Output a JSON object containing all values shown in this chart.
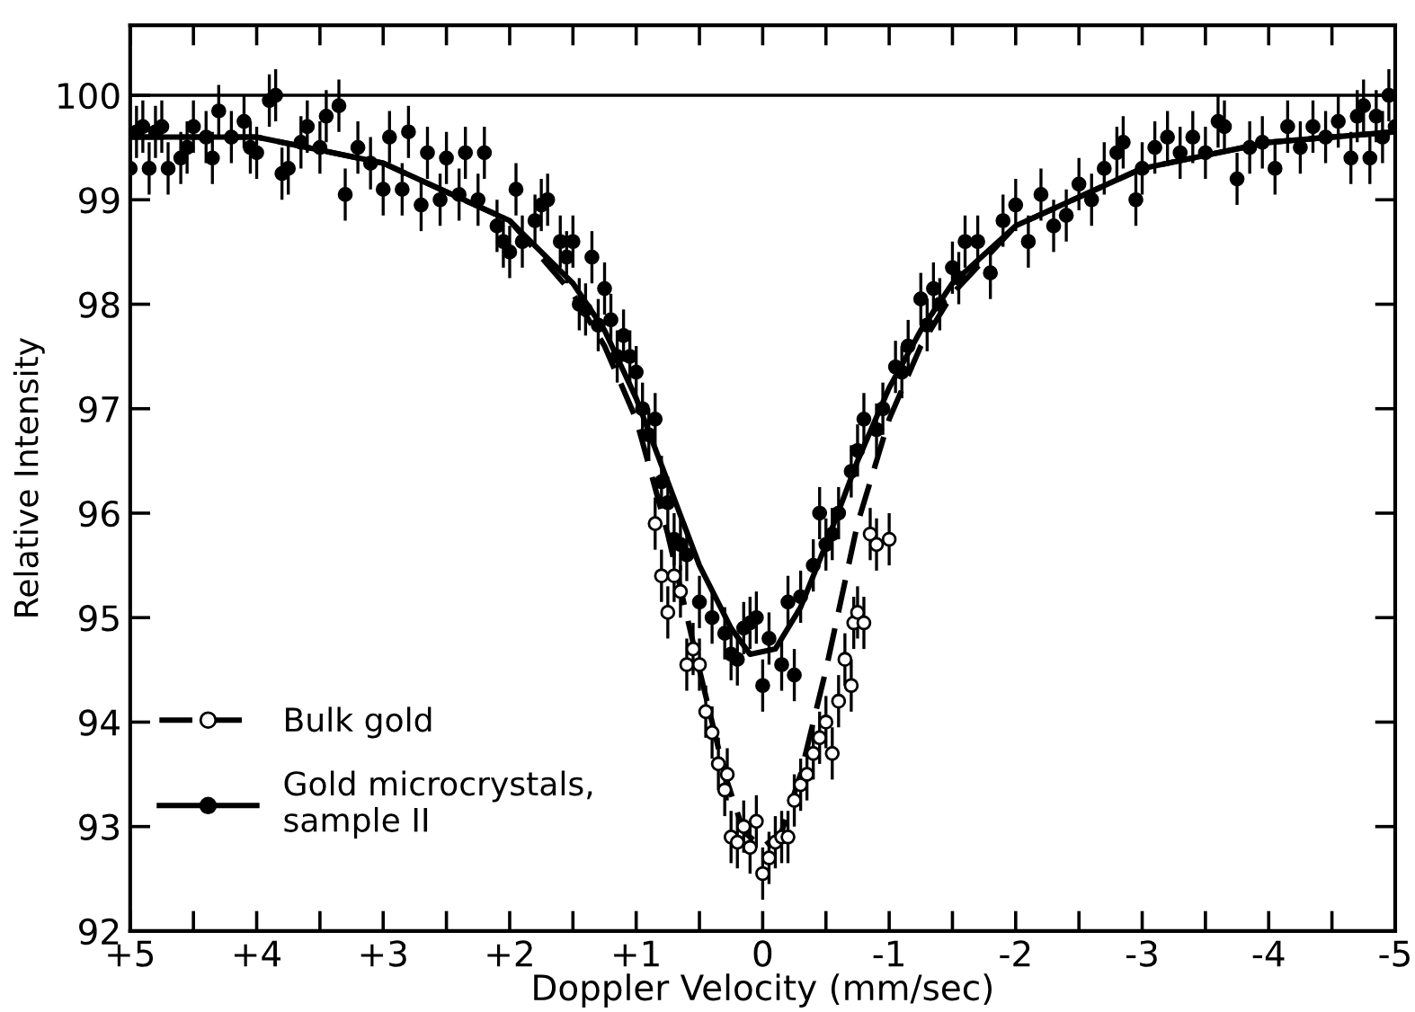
{
  "chart_data": {
    "type": "scatter",
    "xlabel": "Doppler Velocity (mm/sec)",
    "ylabel": "Relative Intensity",
    "xlim": [
      5,
      -5
    ],
    "ylim": [
      92,
      100.67
    ],
    "xticks": [
      {
        "value": 5,
        "label": "+5"
      },
      {
        "value": 4.5,
        "label": null
      },
      {
        "value": 4,
        "label": "+4"
      },
      {
        "value": 3.5,
        "label": null
      },
      {
        "value": 3,
        "label": "+3"
      },
      {
        "value": 2.5,
        "label": null
      },
      {
        "value": 2,
        "label": "+2"
      },
      {
        "value": 1.5,
        "label": null
      },
      {
        "value": 1,
        "label": "+1"
      },
      {
        "value": 0.5,
        "label": null
      },
      0,
      {
        "value": -0.5,
        "label": null
      },
      {
        "value": -1,
        "label": "-1"
      },
      {
        "value": -1.5,
        "label": null
      },
      {
        "value": -2,
        "label": "-2"
      },
      {
        "value": -2.5,
        "label": null
      },
      {
        "value": -3,
        "label": "-3"
      },
      {
        "value": -3.5,
        "label": null
      },
      {
        "value": -4,
        "label": "-4"
      },
      {
        "value": -4.5,
        "label": null
      },
      {
        "value": -5,
        "label": "-5"
      }
    ],
    "yticks": [
      92,
      93,
      94,
      95,
      96,
      97,
      98,
      99,
      100
    ],
    "ref_lines": [
      {
        "axis": "y",
        "value": 100,
        "label": null,
        "color": "#000000",
        "line_style": "solid"
      }
    ],
    "grid": false,
    "legend": "lower left",
    "series": [
      {
        "name": "Bulk gold",
        "marker": "open circle",
        "color": "#000000",
        "line_style": "dashed",
        "x": [
          0.85,
          0.8,
          0.75,
          0.7,
          0.65,
          0.6,
          0.55,
          0.5,
          0.45,
          0.4,
          0.35,
          0.3,
          0.28,
          0.25,
          0.2,
          0.15,
          0.1,
          0.05,
          0.0,
          -0.05,
          -0.1,
          -0.15,
          -0.2,
          -0.25,
          -0.3,
          -0.35,
          -0.4,
          -0.45,
          -0.5,
          -0.55,
          -0.6,
          -0.65,
          -0.7,
          -0.72,
          -0.75,
          -0.8,
          -0.85,
          -0.9,
          -1.0
        ],
        "values": [
          95.9,
          95.4,
          95.05,
          95.4,
          95.25,
          94.55,
          94.7,
          94.55,
          94.1,
          93.9,
          93.6,
          93.35,
          93.5,
          92.9,
          92.85,
          93.0,
          92.8,
          93.05,
          92.55,
          92.7,
          92.85,
          92.9,
          92.9,
          93.25,
          93.4,
          93.5,
          93.7,
          93.85,
          94.0,
          93.7,
          94.2,
          94.6,
          94.35,
          94.95,
          95.05,
          94.95,
          95.8,
          95.7,
          95.75
        ],
        "errors": [
          0.25,
          0.25,
          0.25,
          0.25,
          0.25,
          0.25,
          0.25,
          0.25,
          0.25,
          0.25,
          0.25,
          0.25,
          0.25,
          0.25,
          0.25,
          0.25,
          0.25,
          0.25,
          0.25,
          0.25,
          0.25,
          0.25,
          0.25,
          0.25,
          0.25,
          0.25,
          0.25,
          0.25,
          0.25,
          0.25,
          0.25,
          0.25,
          0.25,
          0.25,
          0.25,
          0.25,
          0.25,
          0.25,
          0.25
        ]
      },
      {
        "name": "Gold microcrystals, sample II",
        "marker": "circle",
        "color": "#000000",
        "line_style": "solid",
        "x": [
          5.0,
          4.95,
          4.9,
          4.85,
          4.8,
          4.75,
          4.7,
          4.6,
          4.55,
          4.5,
          4.4,
          4.35,
          4.3,
          4.2,
          4.1,
          4.05,
          4.0,
          3.9,
          3.85,
          3.8,
          3.75,
          3.65,
          3.6,
          3.5,
          3.45,
          3.35,
          3.3,
          3.2,
          3.1,
          3.0,
          2.95,
          2.85,
          2.8,
          2.7,
          2.65,
          2.55,
          2.5,
          2.4,
          2.35,
          2.25,
          2.2,
          2.1,
          2.05,
          2.0,
          1.95,
          1.9,
          1.8,
          1.75,
          1.7,
          1.6,
          1.55,
          1.5,
          1.45,
          1.4,
          1.35,
          1.3,
          1.25,
          1.2,
          1.15,
          1.1,
          1.05,
          1.0,
          0.95,
          0.9,
          0.85,
          0.8,
          0.75,
          0.7,
          0.65,
          0.6,
          0.5,
          0.4,
          0.3,
          0.25,
          0.2,
          0.15,
          0.1,
          0.05,
          0.0,
          -0.05,
          -0.15,
          -0.2,
          -0.25,
          -0.3,
          -0.4,
          -0.45,
          -0.5,
          -0.55,
          -0.6,
          -0.7,
          -0.75,
          -0.8,
          -0.9,
          -0.95,
          -1.05,
          -1.1,
          -1.15,
          -1.25,
          -1.3,
          -1.35,
          -1.4,
          -1.5,
          -1.55,
          -1.6,
          -1.7,
          -1.8,
          -1.9,
          -2.0,
          -2.1,
          -2.2,
          -2.3,
          -2.4,
          -2.5,
          -2.6,
          -2.7,
          -2.8,
          -2.85,
          -2.95,
          -3.0,
          -3.1,
          -3.2,
          -3.3,
          -3.4,
          -3.5,
          -3.6,
          -3.65,
          -3.75,
          -3.85,
          -3.95,
          -4.05,
          -4.15,
          -4.25,
          -4.35,
          -4.45,
          -4.55,
          -4.65,
          -4.7,
          -4.75,
          -4.8,
          -4.85,
          -4.9,
          -4.95,
          -5.0
        ],
        "values": [
          99.3,
          99.65,
          99.7,
          99.3,
          99.65,
          99.7,
          99.3,
          99.4,
          99.5,
          99.7,
          99.6,
          99.4,
          99.85,
          99.6,
          99.75,
          99.5,
          99.45,
          99.95,
          100.0,
          99.25,
          99.3,
          99.55,
          99.7,
          99.5,
          99.8,
          99.9,
          99.05,
          99.5,
          99.35,
          99.1,
          99.6,
          99.1,
          99.65,
          98.95,
          99.45,
          99.0,
          99.4,
          99.05,
          99.45,
          99.0,
          99.45,
          98.75,
          98.6,
          98.5,
          99.1,
          98.6,
          98.8,
          98.95,
          99.0,
          98.6,
          98.45,
          98.6,
          98.0,
          97.95,
          98.45,
          97.8,
          98.15,
          97.85,
          97.5,
          97.7,
          97.5,
          97.35,
          97.0,
          96.75,
          96.9,
          96.3,
          96.1,
          95.75,
          95.7,
          95.6,
          95.15,
          95.0,
          94.85,
          94.65,
          94.6,
          94.9,
          94.95,
          95.0,
          94.35,
          94.8,
          94.55,
          95.15,
          94.45,
          95.2,
          95.5,
          96.0,
          95.7,
          95.8,
          96.0,
          96.4,
          96.6,
          96.9,
          96.8,
          97.0,
          97.4,
          97.35,
          97.6,
          98.05,
          97.8,
          98.15,
          98.0,
          98.35,
          98.25,
          98.6,
          98.6,
          98.3,
          98.8,
          98.95,
          98.6,
          99.05,
          98.75,
          98.85,
          99.15,
          99.0,
          99.3,
          99.45,
          99.55,
          99.0,
          99.3,
          99.5,
          99.6,
          99.45,
          99.6,
          99.45,
          99.75,
          99.7,
          99.2,
          99.5,
          99.55,
          99.3,
          99.7,
          99.5,
          99.7,
          99.6,
          99.75,
          99.4,
          99.8,
          99.9,
          99.4,
          99.8,
          99.6,
          100.0,
          99.7
        ],
        "errors": [
          0.25,
          0.25,
          0.25,
          0.25,
          0.25,
          0.25,
          0.25,
          0.25,
          0.25,
          0.25,
          0.25,
          0.25,
          0.25,
          0.25,
          0.25,
          0.25,
          0.25,
          0.25,
          0.25,
          0.25,
          0.25,
          0.25,
          0.25,
          0.25,
          0.25,
          0.25,
          0.25,
          0.25,
          0.25,
          0.25,
          0.25,
          0.25,
          0.25,
          0.25,
          0.25,
          0.25,
          0.25,
          0.25,
          0.25,
          0.25,
          0.25,
          0.25,
          0.25,
          0.25,
          0.25,
          0.25,
          0.25,
          0.25,
          0.25,
          0.25,
          0.25,
          0.25,
          0.25,
          0.25,
          0.25,
          0.25,
          0.25,
          0.25,
          0.25,
          0.25,
          0.25,
          0.25,
          0.25,
          0.25,
          0.25,
          0.25,
          0.25,
          0.25,
          0.25,
          0.25,
          0.25,
          0.25,
          0.25,
          0.25,
          0.25,
          0.25,
          0.25,
          0.25,
          0.25,
          0.25,
          0.25,
          0.25,
          0.25,
          0.25,
          0.25,
          0.25,
          0.25,
          0.25,
          0.25,
          0.25,
          0.25,
          0.25,
          0.25,
          0.25,
          0.25,
          0.25,
          0.25,
          0.25,
          0.25,
          0.25,
          0.25,
          0.25,
          0.25,
          0.25,
          0.25,
          0.25,
          0.25,
          0.25,
          0.25,
          0.25,
          0.25,
          0.25,
          0.25,
          0.25,
          0.25,
          0.25,
          0.25,
          0.25,
          0.25,
          0.25,
          0.25,
          0.25,
          0.25,
          0.25,
          0.25,
          0.25,
          0.25,
          0.25,
          0.25,
          0.25,
          0.25,
          0.25,
          0.25,
          0.25,
          0.25,
          0.25,
          0.25,
          0.25,
          0.25,
          0.25,
          0.25,
          0.25,
          0.25
        ]
      },
      {
        "type": "line",
        "color": "#000000",
        "line_style": "dashed",
        "marker": "none",
        "x": [
          5,
          4,
          3,
          2,
          1.5,
          1.25,
          1,
          0.75,
          0.5,
          0.3,
          0.15,
          0,
          -0.15,
          -0.3,
          -0.5,
          -0.75,
          -1,
          -1.25,
          -1.5,
          -2,
          -3,
          -4,
          -5
        ],
        "values": [
          99.6,
          99.6,
          99.35,
          98.8,
          98.1,
          97.6,
          96.9,
          95.8,
          94.5,
          93.5,
          92.95,
          92.8,
          92.95,
          93.5,
          94.5,
          95.9,
          96.9,
          97.6,
          98.1,
          98.75,
          99.3,
          99.55,
          99.65
        ]
      },
      {
        "type": "line",
        "color": "#000000",
        "line_style": "solid",
        "marker": "none",
        "x": [
          5,
          4,
          3,
          2,
          1.5,
          1.25,
          1,
          0.75,
          0.5,
          0.25,
          0.1,
          -0.1,
          -0.3,
          -0.5,
          -0.75,
          -1,
          -1.25,
          -1.5,
          -2,
          -3,
          -4,
          -5
        ],
        "values": [
          99.6,
          99.6,
          99.35,
          98.8,
          98.2,
          97.75,
          97.1,
          96.3,
          95.5,
          94.9,
          94.65,
          94.7,
          95.1,
          95.7,
          96.5,
          97.2,
          97.75,
          98.2,
          98.75,
          99.3,
          99.55,
          99.65
        ]
      }
    ]
  }
}
